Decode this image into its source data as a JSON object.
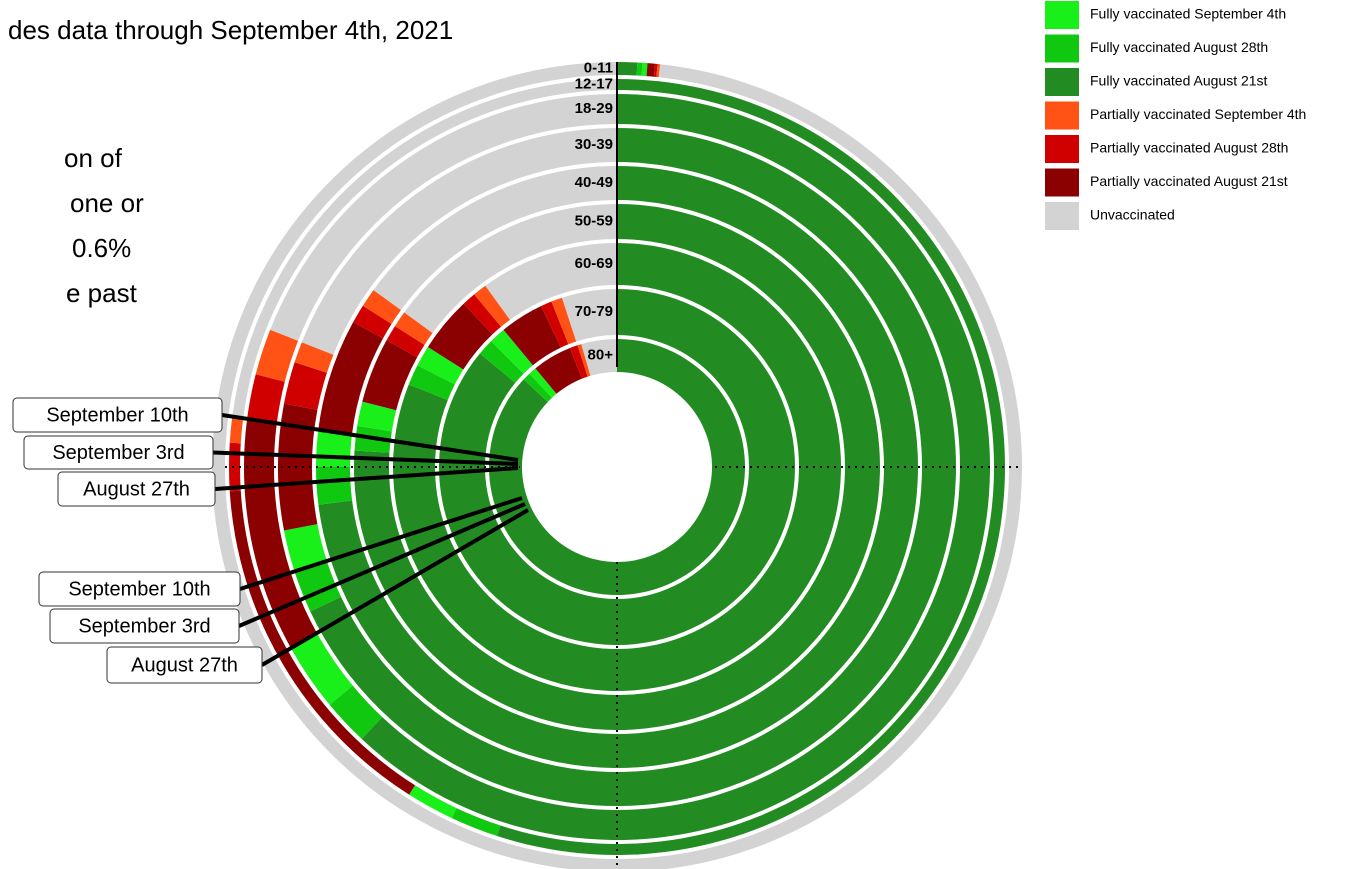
{
  "chart_data": {
    "type": "radial-stacked-bar",
    "subtitle": "des data through September 4th, 2021",
    "body_lines": [
      "on of",
      "one or",
      "0.6%",
      "e past"
    ],
    "categories": [
      "0-11",
      "12-17",
      "18-29",
      "30-39",
      "40-49",
      "50-59",
      "60-69",
      "70-79",
      "80+"
    ],
    "series": [
      {
        "name": "Fully vaccinated September 4th",
        "color": "#19f019",
        "values": [
          0.2,
          2,
          3,
          2,
          2,
          1.5,
          1.5,
          1.5,
          1
        ]
      },
      {
        "name": "Fully vaccinated August 28th",
        "color": "#10c810",
        "values": [
          0.2,
          2,
          2,
          2,
          2,
          1.5,
          1.5,
          1.5,
          1
        ]
      },
      {
        "name": "Fully vaccinated August 21st",
        "color": "#228b22",
        "values": [
          0.8,
          55,
          62,
          68,
          73,
          76,
          81,
          86,
          87
        ]
      },
      {
        "name": "Partially vaccinated September 4th",
        "color": "#ff5214",
        "values": [
          0.1,
          1,
          2,
          1,
          1,
          1,
          1,
          1,
          0.5
        ]
      },
      {
        "name": "Partially vaccinated August 28th",
        "color": "#d00000",
        "values": [
          0.1,
          2,
          2,
          2,
          1,
          1,
          1,
          1,
          1
        ]
      },
      {
        "name": "Partially vaccinated August 21st",
        "color": "#8b0000",
        "values": [
          0.3,
          15,
          10,
          6,
          6,
          4,
          4,
          4,
          5
        ]
      },
      {
        "name": "Unvaccinated",
        "color": "#d3d3d3",
        "values": [
          98.3,
          23,
          19,
          19,
          15,
          15,
          10,
          5,
          4.5
        ]
      }
    ],
    "annotations": [
      "September 10th",
      "September 3rd",
      "August 27th",
      "September 10th",
      "September 3rd",
      "August 27th"
    ]
  }
}
